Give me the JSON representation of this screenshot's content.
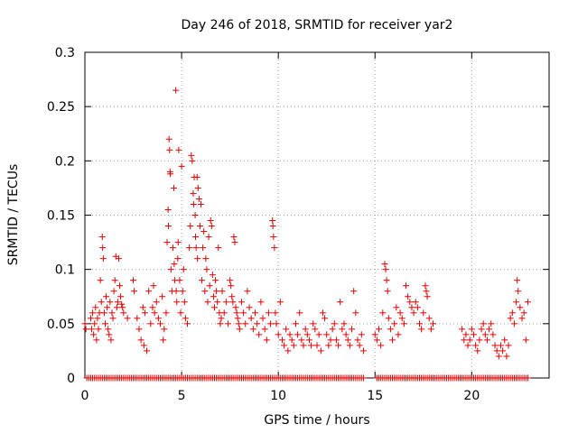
{
  "chart_data": {
    "type": "scatter",
    "title": "Day 246 of 2018, SRMTID for receiver yar2",
    "xlabel": "GPS time / hours",
    "ylabel": "SRMTID / TECUs",
    "xlim": [
      0,
      24
    ],
    "ylim": [
      0,
      0.3
    ],
    "xticks": [
      0,
      5,
      10,
      15,
      20
    ],
    "xtick_labels": [
      "0",
      "5",
      "10",
      "15",
      "20"
    ],
    "yticks": [
      0,
      0.05,
      0.1,
      0.15,
      0.2,
      0.25,
      0.3
    ],
    "ytick_labels": [
      "0",
      "0.05",
      "0.1",
      "0.15",
      "0.2",
      "0.25",
      "0.3"
    ],
    "grid": true,
    "marker": "+",
    "color": "#e00000",
    "series": [
      {
        "name": "SRMTID",
        "points": [
          [
            0.0,
            0.05
          ],
          [
            0.05,
            0.045
          ],
          [
            0.3,
            0.055
          ],
          [
            0.35,
            0.045
          ],
          [
            0.4,
            0.06
          ],
          [
            0.45,
            0.04
          ],
          [
            0.5,
            0.05
          ],
          [
            0.55,
            0.065
          ],
          [
            0.6,
            0.035
          ],
          [
            0.65,
            0.055
          ],
          [
            0.7,
            0.045
          ],
          [
            0.75,
            0.06
          ],
          [
            0.8,
            0.09
          ],
          [
            0.85,
            0.07
          ],
          [
            0.9,
            0.13
          ],
          [
            0.92,
            0.12
          ],
          [
            0.95,
            0.11
          ],
          [
            1.0,
            0.06
          ],
          [
            1.05,
            0.05
          ],
          [
            1.1,
            0.075
          ],
          [
            1.15,
            0.065
          ],
          [
            1.2,
            0.045
          ],
          [
            1.25,
            0.04
          ],
          [
            1.3,
            0.07
          ],
          [
            1.35,
            0.035
          ],
          [
            1.4,
            0.06
          ],
          [
            1.45,
            0.055
          ],
          [
            1.5,
            0.08
          ],
          [
            1.55,
            0.09
          ],
          [
            1.6,
            0.112
          ],
          [
            1.65,
            0.065
          ],
          [
            1.7,
            0.07
          ],
          [
            1.75,
            0.11
          ],
          [
            1.8,
            0.085
          ],
          [
            1.85,
            0.075
          ],
          [
            1.9,
            0.068
          ],
          [
            1.95,
            0.065
          ],
          [
            2.0,
            0.06
          ],
          [
            2.2,
            0.055
          ],
          [
            2.5,
            0.09
          ],
          [
            2.55,
            0.08
          ],
          [
            2.7,
            0.055
          ],
          [
            2.8,
            0.045
          ],
          [
            2.9,
            0.035
          ],
          [
            3.0,
            0.065
          ],
          [
            3.05,
            0.03
          ],
          [
            3.1,
            0.06
          ],
          [
            3.2,
            0.025
          ],
          [
            3.3,
            0.08
          ],
          [
            3.4,
            0.05
          ],
          [
            3.5,
            0.065
          ],
          [
            3.55,
            0.085
          ],
          [
            3.6,
            0.06
          ],
          [
            3.7,
            0.07
          ],
          [
            3.8,
            0.055
          ],
          [
            3.9,
            0.05
          ],
          [
            4.0,
            0.075
          ],
          [
            4.05,
            0.035
          ],
          [
            4.1,
            0.045
          ],
          [
            4.2,
            0.06
          ],
          [
            4.25,
            0.125
          ],
          [
            4.3,
            0.155
          ],
          [
            4.32,
            0.14
          ],
          [
            4.35,
            0.22
          ],
          [
            4.38,
            0.21
          ],
          [
            4.4,
            0.19
          ],
          [
            4.42,
            0.188
          ],
          [
            4.45,
            0.1
          ],
          [
            4.5,
            0.08
          ],
          [
            4.55,
            0.12
          ],
          [
            4.6,
            0.175
          ],
          [
            4.62,
            0.105
          ],
          [
            4.65,
            0.09
          ],
          [
            4.7,
            0.265
          ],
          [
            4.72,
            0.08
          ],
          [
            4.75,
            0.07
          ],
          [
            4.8,
            0.11
          ],
          [
            4.82,
            0.125
          ],
          [
            4.85,
            0.21
          ],
          [
            4.9,
            0.09
          ],
          [
            4.95,
            0.06
          ],
          [
            5.0,
            0.195
          ],
          [
            5.05,
            0.08
          ],
          [
            5.1,
            0.1
          ],
          [
            5.15,
            0.07
          ],
          [
            5.2,
            0.055
          ],
          [
            5.3,
            0.05
          ],
          [
            5.4,
            0.12
          ],
          [
            5.45,
            0.14
          ],
          [
            5.5,
            0.205
          ],
          [
            5.55,
            0.2
          ],
          [
            5.6,
            0.17
          ],
          [
            5.62,
            0.16
          ],
          [
            5.65,
            0.185
          ],
          [
            5.7,
            0.15
          ],
          [
            5.72,
            0.13
          ],
          [
            5.75,
            0.12
          ],
          [
            5.8,
            0.185
          ],
          [
            5.82,
            0.11
          ],
          [
            5.85,
            0.175
          ],
          [
            5.9,
            0.165
          ],
          [
            5.95,
            0.14
          ],
          [
            6.0,
            0.16
          ],
          [
            6.05,
            0.09
          ],
          [
            6.1,
            0.12
          ],
          [
            6.15,
            0.135
          ],
          [
            6.2,
            0.08
          ],
          [
            6.25,
            0.11
          ],
          [
            6.3,
            0.1
          ],
          [
            6.35,
            0.07
          ],
          [
            6.4,
            0.13
          ],
          [
            6.45,
            0.085
          ],
          [
            6.5,
            0.145
          ],
          [
            6.55,
            0.14
          ],
          [
            6.6,
            0.095
          ],
          [
            6.65,
            0.075
          ],
          [
            6.7,
            0.065
          ],
          [
            6.75,
            0.09
          ],
          [
            6.8,
            0.08
          ],
          [
            6.85,
            0.07
          ],
          [
            6.9,
            0.12
          ],
          [
            6.95,
            0.06
          ],
          [
            7.0,
            0.05
          ],
          [
            7.05,
            0.055
          ],
          [
            7.1,
            0.08
          ],
          [
            7.2,
            0.06
          ],
          [
            7.3,
            0.07
          ],
          [
            7.4,
            0.05
          ],
          [
            7.5,
            0.09
          ],
          [
            7.55,
            0.085
          ],
          [
            7.6,
            0.075
          ],
          [
            7.65,
            0.07
          ],
          [
            7.7,
            0.13
          ],
          [
            7.75,
            0.125
          ],
          [
            7.8,
            0.065
          ],
          [
            7.85,
            0.06
          ],
          [
            7.9,
            0.055
          ],
          [
            7.95,
            0.05
          ],
          [
            8.0,
            0.045
          ],
          [
            8.1,
            0.07
          ],
          [
            8.2,
            0.06
          ],
          [
            8.3,
            0.05
          ],
          [
            8.4,
            0.08
          ],
          [
            8.5,
            0.065
          ],
          [
            8.6,
            0.055
          ],
          [
            8.7,
            0.045
          ],
          [
            8.8,
            0.06
          ],
          [
            8.9,
            0.05
          ],
          [
            9.0,
            0.04
          ],
          [
            9.1,
            0.07
          ],
          [
            9.2,
            0.055
          ],
          [
            9.3,
            0.045
          ],
          [
            9.4,
            0.035
          ],
          [
            9.5,
            0.06
          ],
          [
            9.6,
            0.05
          ],
          [
            9.7,
            0.145
          ],
          [
            9.72,
            0.14
          ],
          [
            9.75,
            0.13
          ],
          [
            9.8,
            0.12
          ],
          [
            9.85,
            0.06
          ],
          [
            9.9,
            0.05
          ],
          [
            10.0,
            0.04
          ],
          [
            10.1,
            0.07
          ],
          [
            10.2,
            0.035
          ],
          [
            10.3,
            0.03
          ],
          [
            10.4,
            0.045
          ],
          [
            10.5,
            0.025
          ],
          [
            10.6,
            0.04
          ],
          [
            10.7,
            0.035
          ],
          [
            10.8,
            0.03
          ],
          [
            10.9,
            0.05
          ],
          [
            11.0,
            0.04
          ],
          [
            11.1,
            0.06
          ],
          [
            11.2,
            0.035
          ],
          [
            11.3,
            0.03
          ],
          [
            11.4,
            0.045
          ],
          [
            11.5,
            0.04
          ],
          [
            11.6,
            0.035
          ],
          [
            11.7,
            0.03
          ],
          [
            11.8,
            0.05
          ],
          [
            11.9,
            0.045
          ],
          [
            12.0,
            0.03
          ],
          [
            12.1,
            0.04
          ],
          [
            12.2,
            0.025
          ],
          [
            12.3,
            0.06
          ],
          [
            12.4,
            0.055
          ],
          [
            12.5,
            0.04
          ],
          [
            12.6,
            0.03
          ],
          [
            12.7,
            0.035
          ],
          [
            12.8,
            0.045
          ],
          [
            12.9,
            0.05
          ],
          [
            13.0,
            0.035
          ],
          [
            13.1,
            0.03
          ],
          [
            13.2,
            0.07
          ],
          [
            13.3,
            0.045
          ],
          [
            13.4,
            0.05
          ],
          [
            13.5,
            0.04
          ],
          [
            13.6,
            0.035
          ],
          [
            13.7,
            0.03
          ],
          [
            13.8,
            0.045
          ],
          [
            13.9,
            0.08
          ],
          [
            14.0,
            0.06
          ],
          [
            14.1,
            0.035
          ],
          [
            14.2,
            0.03
          ],
          [
            14.3,
            0.04
          ],
          [
            14.4,
            0.025
          ],
          [
            15.0,
            0.04
          ],
          [
            15.1,
            0.035
          ],
          [
            15.2,
            0.045
          ],
          [
            15.3,
            0.03
          ],
          [
            15.4,
            0.06
          ],
          [
            15.5,
            0.105
          ],
          [
            15.55,
            0.1
          ],
          [
            15.6,
            0.09
          ],
          [
            15.65,
            0.08
          ],
          [
            15.7,
            0.055
          ],
          [
            15.8,
            0.045
          ],
          [
            15.9,
            0.035
          ],
          [
            16.0,
            0.05
          ],
          [
            16.1,
            0.065
          ],
          [
            16.2,
            0.04
          ],
          [
            16.3,
            0.06
          ],
          [
            16.4,
            0.055
          ],
          [
            16.5,
            0.05
          ],
          [
            16.6,
            0.085
          ],
          [
            16.7,
            0.075
          ],
          [
            16.8,
            0.07
          ],
          [
            16.9,
            0.065
          ],
          [
            17.0,
            0.06
          ],
          [
            17.1,
            0.07
          ],
          [
            17.2,
            0.065
          ],
          [
            17.3,
            0.05
          ],
          [
            17.4,
            0.045
          ],
          [
            17.5,
            0.06
          ],
          [
            17.6,
            0.085
          ],
          [
            17.65,
            0.08
          ],
          [
            17.7,
            0.075
          ],
          [
            17.8,
            0.055
          ],
          [
            17.9,
            0.045
          ],
          [
            18.0,
            0.05
          ],
          [
            19.5,
            0.045
          ],
          [
            19.6,
            0.035
          ],
          [
            19.7,
            0.04
          ],
          [
            19.8,
            0.03
          ],
          [
            19.9,
            0.035
          ],
          [
            20.0,
            0.045
          ],
          [
            20.1,
            0.04
          ],
          [
            20.2,
            0.03
          ],
          [
            20.3,
            0.025
          ],
          [
            20.4,
            0.035
          ],
          [
            20.5,
            0.045
          ],
          [
            20.6,
            0.05
          ],
          [
            20.7,
            0.04
          ],
          [
            20.8,
            0.035
          ],
          [
            20.9,
            0.045
          ],
          [
            21.0,
            0.05
          ],
          [
            21.1,
            0.04
          ],
          [
            21.2,
            0.03
          ],
          [
            21.3,
            0.025
          ],
          [
            21.4,
            0.02
          ],
          [
            21.5,
            0.03
          ],
          [
            21.6,
            0.025
          ],
          [
            21.7,
            0.035
          ],
          [
            21.8,
            0.02
          ],
          [
            21.9,
            0.03
          ],
          [
            22.0,
            0.055
          ],
          [
            22.1,
            0.06
          ],
          [
            22.2,
            0.05
          ],
          [
            22.3,
            0.07
          ],
          [
            22.35,
            0.09
          ],
          [
            22.4,
            0.08
          ],
          [
            22.5,
            0.065
          ],
          [
            22.6,
            0.055
          ],
          [
            22.7,
            0.06
          ],
          [
            22.8,
            0.035
          ],
          [
            22.9,
            0.07
          ]
        ]
      }
    ],
    "zero_points_x": [
      0.1,
      0.2,
      0.3,
      0.4,
      0.5,
      0.6,
      0.7,
      0.8,
      0.9,
      1.0,
      1.1,
      1.2,
      1.3,
      1.4,
      1.5,
      1.6,
      1.7,
      1.8,
      1.9,
      2.0,
      2.1,
      2.2,
      2.3,
      2.4,
      2.5,
      2.6,
      2.7,
      2.8,
      2.9,
      3.0,
      3.1,
      3.2,
      3.3,
      3.4,
      3.5,
      3.6,
      3.7,
      3.8,
      3.9,
      4.0,
      4.1,
      4.2,
      4.3,
      4.4,
      4.5,
      4.6,
      4.7,
      4.8,
      4.9,
      5.0,
      5.1,
      5.2,
      5.3,
      5.4,
      5.5,
      5.6,
      5.7,
      5.8,
      5.9,
      6.0,
      6.1,
      6.2,
      6.3,
      6.4,
      6.5,
      6.6,
      6.7,
      6.8,
      6.9,
      7.0,
      7.1,
      7.2,
      7.3,
      7.4,
      7.5,
      7.6,
      7.7,
      7.8,
      7.9,
      8.0,
      8.1,
      8.2,
      8.3,
      8.4,
      8.5,
      8.6,
      8.7,
      8.8,
      8.9,
      9.0,
      9.1,
      9.2,
      9.3,
      9.4,
      9.5,
      9.6,
      9.7,
      9.8,
      9.9,
      10.0,
      10.1,
      10.2,
      10.3,
      10.4,
      10.5,
      10.6,
      10.7,
      10.8,
      10.9,
      11.0,
      11.1,
      11.2,
      11.3,
      11.4,
      11.5,
      11.6,
      11.7,
      11.8,
      11.9,
      12.0,
      12.1,
      12.2,
      12.3,
      12.4,
      12.5,
      12.6,
      12.7,
      12.8,
      12.9,
      13.0,
      13.1,
      13.2,
      13.3,
      13.4,
      13.5,
      13.6,
      13.7,
      13.8,
      13.9,
      14.0,
      14.1,
      14.2,
      14.3,
      14.4,
      15.1,
      15.2,
      15.3,
      15.4,
      15.5,
      15.6,
      15.7,
      15.8,
      15.9,
      16.0,
      16.1,
      16.2,
      16.3,
      16.4,
      16.5,
      16.6,
      16.7,
      16.8,
      16.9,
      17.0,
      17.1,
      17.2,
      17.3,
      17.4,
      17.5,
      17.6,
      17.7,
      17.8,
      17.9,
      18.0,
      18.1,
      18.2,
      18.3,
      18.4,
      18.5,
      18.6,
      18.7,
      18.8,
      18.9,
      19.0,
      19.1,
      19.2,
      19.3,
      19.4,
      19.5,
      19.6,
      19.7,
      19.8,
      19.9,
      20.0,
      20.1,
      20.2,
      20.3,
      20.4,
      20.5,
      20.6,
      20.7,
      20.8,
      20.9,
      21.0,
      21.1,
      21.2,
      21.3,
      21.4,
      21.5,
      21.6,
      21.7,
      21.8,
      21.9,
      22.0,
      22.1,
      22.2,
      22.3,
      22.4,
      22.5,
      22.6,
      22.7,
      22.8,
      22.9
    ]
  }
}
